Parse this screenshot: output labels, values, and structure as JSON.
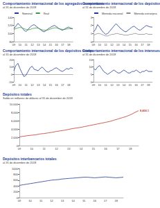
{
  "chart_data": [
    {
      "type": "line",
      "title": "Comportamiento internacional de los agregados económicos",
      "subtitle": "al 31 de diciembre de 2018",
      "categories": [
        "09",
        null,
        null,
        "10",
        null,
        null,
        "11",
        null,
        null,
        "12",
        null,
        null,
        "13",
        null,
        null,
        "14",
        null,
        null,
        "15",
        null,
        null,
        "16",
        null,
        null,
        "17",
        null,
        null,
        "18",
        null,
        null
      ],
      "series": [
        {
          "name": "Nominal",
          "color": "#1f3d99",
          "values": [
            112,
            118,
            125,
            120,
            115,
            108,
            105,
            110,
            116,
            120,
            122,
            118,
            114,
            110,
            106,
            104,
            108,
            112,
            115,
            118,
            120,
            117,
            113,
            110,
            108,
            111,
            114,
            116,
            113,
            112
          ]
        },
        {
          "name": "Real",
          "color": "#3a9a3a",
          "values": [
            110,
            112,
            114,
            115,
            114,
            112,
            110,
            109,
            110,
            112,
            113,
            114,
            113,
            111,
            109,
            108,
            108,
            109,
            111,
            113,
            114,
            114,
            112,
            111,
            110,
            110,
            111,
            112,
            112,
            112
          ]
        }
      ],
      "ylim": [
        80,
        140
      ],
      "yticks": [
        80,
        100,
        120,
        140
      ],
      "grid": false,
      "legend": "top"
    },
    {
      "type": "line",
      "title": "Comportamiento internacional de los depósitos por moneda",
      "subtitle": "al 31 de diciembre de 2018",
      "categories": [
        "09",
        null,
        null,
        "10",
        null,
        null,
        "11",
        null,
        null,
        "12",
        null,
        null,
        "13",
        null,
        null,
        "14",
        null,
        null,
        "15",
        null,
        null,
        "16",
        null,
        null,
        "17",
        null,
        null,
        "18",
        null,
        null
      ],
      "series": [
        {
          "name": "Moneda nacional",
          "color": "#1f3d99",
          "values": [
            1.2,
            1.5,
            2.1,
            1.8,
            1.4,
            1.1,
            0.9,
            1.0,
            1.3,
            1.6,
            1.9,
            2.2,
            2.0,
            1.7,
            1.5,
            1.3,
            1.2,
            1.4,
            1.6,
            1.8,
            1.9,
            1.7,
            1.5,
            1.4,
            1.6,
            1.8,
            2.0,
            1.9,
            1.8,
            1.8
          ]
        },
        {
          "name": "Moneda extranjera",
          "color": "#8c8c8c",
          "values": [
            0.8,
            0.9,
            1.0,
            1.0,
            0.9,
            0.8,
            0.7,
            0.7,
            0.8,
            0.9,
            0.9,
            1.0,
            1.0,
            0.9,
            0.9,
            0.8,
            0.8,
            0.8,
            0.9,
            0.9,
            1.0,
            1.0,
            0.9,
            0.9,
            0.9,
            0.9,
            1.0,
            0.9,
            0.9,
            0.9
          ]
        }
      ],
      "ylim": [
        0,
        3
      ],
      "yticks": [
        0,
        1,
        2,
        3
      ],
      "grid": false,
      "legend": "top"
    },
    {
      "type": "line",
      "title": "Comportamiento internacional de los depósitos totales",
      "subtitle": "al 31 de diciembre de 2018",
      "categories": [
        "09",
        null,
        null,
        "10",
        null,
        null,
        "11",
        null,
        null,
        "12",
        null,
        null,
        "13",
        null,
        null,
        "14",
        null,
        null,
        "15",
        null,
        null,
        "16",
        null,
        null,
        "17",
        null,
        null,
        "18",
        null,
        null
      ],
      "series": [
        {
          "name": "Depósitos totales",
          "color": "#1f3d99",
          "values": [
            5,
            12,
            15,
            8,
            2,
            -3,
            -1,
            4,
            9,
            11,
            7,
            6,
            5,
            8,
            10,
            7,
            4,
            3,
            5,
            6,
            8,
            9,
            7,
            5,
            4,
            6,
            8,
            7,
            9,
            8
          ]
        }
      ],
      "ylim": [
        -10,
        20
      ],
      "yticks": [
        -10,
        0,
        10,
        20
      ],
      "grid": false
    },
    {
      "type": "line",
      "title": "Comportamiento internacional de los intereses",
      "subtitle": "al 31 de diciembre de 2018",
      "categories": [
        "09",
        null,
        null,
        "10",
        null,
        null,
        "11",
        null,
        null,
        "12",
        null,
        null,
        "13",
        null,
        null,
        "14",
        null,
        null,
        "15",
        null,
        null,
        "16",
        null,
        null,
        "17",
        null,
        null,
        "18",
        null,
        null
      ],
      "series": [
        {
          "name": "Intereses",
          "color": "#1f3d99",
          "values": [
            9,
            8,
            10,
            11,
            9,
            7,
            6,
            5,
            6,
            7,
            8,
            7,
            6,
            6,
            7,
            8,
            7,
            6,
            6,
            7,
            7,
            8,
            7,
            6,
            7,
            7,
            8,
            7,
            7,
            7
          ]
        }
      ],
      "ylim": [
        0,
        15
      ],
      "yticks": [
        0,
        5,
        10,
        15
      ],
      "grid": false
    },
    {
      "type": "line",
      "title": "Depósitos totales",
      "subtitle": "Saldo en millones de dólares al 31 de diciembre de 2018",
      "categories": [
        "09",
        null,
        null,
        "10",
        null,
        null,
        "11",
        null,
        null,
        "12",
        null,
        null,
        "13",
        null,
        null,
        "14",
        null,
        null,
        "15",
        null,
        null,
        "16",
        null,
        null,
        "17",
        null,
        null,
        "18",
        null,
        null
      ],
      "series": [
        {
          "name": "Depósitos",
          "color": "#c0392b",
          "values": [
            2100,
            2250,
            2400,
            2500,
            2600,
            2800,
            2900,
            3050,
            3200,
            3400,
            3550,
            3700,
            3900,
            4100,
            4250,
            4400,
            4600,
            4800,
            5000,
            5200,
            5400,
            5600,
            5800,
            6100,
            6400,
            6700,
            7000,
            7400,
            7900,
            8400.1
          ]
        }
      ],
      "annotation": "8,400.1",
      "ylim": [
        0,
        10000
      ],
      "yticks": [
        0,
        {
          "value": 2000,
          "label": "2,000"
        },
        {
          "value": 4000,
          "label": "4,000"
        },
        {
          "value": 6000,
          "label": "6,000"
        },
        {
          "value": 8000,
          "label": "8,000"
        },
        {
          "value": 10000,
          "label": "10,000"
        }
      ],
      "grid": false
    },
    {
      "type": "line",
      "title": "Depósitos interbancarios totales",
      "subtitle": "al 31 de diciembre de 2018",
      "categories": [
        "09",
        null,
        null,
        "10",
        null,
        null,
        "11",
        null,
        null,
        "12",
        null,
        null,
        "13",
        null,
        null,
        "14",
        null,
        null,
        "15",
        null,
        null,
        "16",
        null,
        null,
        "17",
        null,
        null,
        "18",
        null,
        null
      ],
      "series": [
        {
          "name": "Interbancarios",
          "color": "#1f3d99",
          "values": [
            420,
            440,
            460,
            480,
            500,
            520,
            540,
            560,
            580,
            600,
            610,
            620,
            640,
            650,
            660,
            670,
            680,
            690,
            700,
            700,
            690,
            680,
            690,
            700,
            710,
            700,
            690,
            680,
            690,
            700
          ]
        }
      ],
      "ylim": [
        0,
        1000
      ],
      "yticks": [
        0,
        200,
        400,
        600,
        800,
        1000
      ],
      "grid": false
    }
  ]
}
